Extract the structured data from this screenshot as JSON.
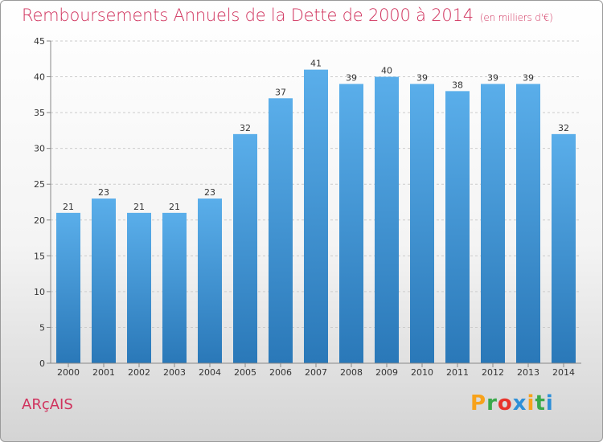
{
  "header": {
    "title": "Remboursements Annuels de la Dette de 2000 à 2014",
    "subtitle": "(en milliers d'€)"
  },
  "footer": {
    "town": "ARçAIS",
    "logo": "Proxiti",
    "logo_colors": [
      "#f7a21b",
      "#3aa94a",
      "#e8332a",
      "#2d8fd8",
      "#f7a21b",
      "#3aa94a",
      "#2d8fd8"
    ]
  },
  "chart_data": {
    "type": "bar",
    "title": "Remboursements Annuels de la Dette de 2000 à 2014",
    "subtitle": "(en milliers d'€)",
    "categories": [
      "2000",
      "2001",
      "2002",
      "2003",
      "2004",
      "2005",
      "2006",
      "2007",
      "2008",
      "2009",
      "2010",
      "2011",
      "2012",
      "2013",
      "2014"
    ],
    "values": [
      21,
      23,
      21,
      21,
      23,
      32,
      37,
      41,
      39,
      40,
      39,
      38,
      39,
      39,
      32
    ],
    "data_labels": [
      "21",
      "23",
      "21",
      "21",
      "23",
      "32",
      "37",
      "41",
      "39",
      "40",
      "39",
      "38",
      "39",
      "39",
      "32"
    ],
    "yticks": [
      "0",
      "5",
      "10",
      "15",
      "20",
      "25",
      "30",
      "35",
      "40",
      "45"
    ],
    "ylim": [
      0,
      45
    ],
    "grid": "horizontal dashed",
    "bar_color_top": "#5aaeea",
    "bar_color_bottom": "#2a78b8",
    "grid_color": "#cccccc"
  }
}
